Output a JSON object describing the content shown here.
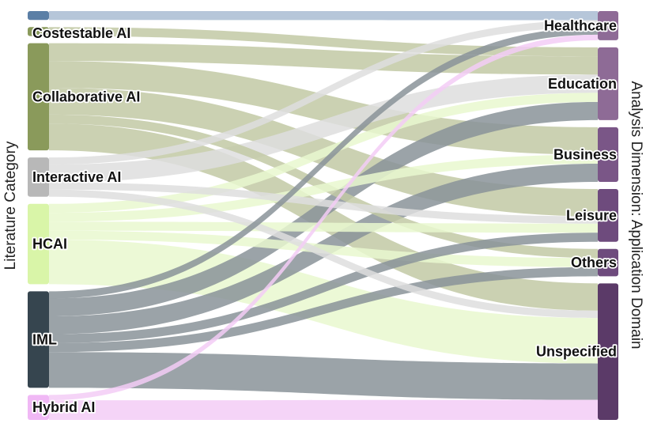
{
  "left_axis_title": "Literature Category",
  "right_axis_title": "Analysis Dimension: Application Domain",
  "sources": [
    {
      "id": "top",
      "label": "",
      "color": "#5b7fa6"
    },
    {
      "id": "costestable",
      "label": "Costestable AI",
      "color": "#8a9a5b"
    },
    {
      "id": "collaborative",
      "label": "Collaborative AI",
      "color": "#8a9a5b"
    },
    {
      "id": "interactive",
      "label": "Interactive AI",
      "color": "#b8b8b8"
    },
    {
      "id": "hcai",
      "label": "HCAI",
      "color": "#d9f5a8"
    },
    {
      "id": "iml",
      "label": "IML",
      "color": "#36454f"
    },
    {
      "id": "hybrid",
      "label": "Hybrid AI",
      "color": "#f0b8f5"
    }
  ],
  "targets": [
    {
      "id": "healthcare",
      "label": "Healthcare",
      "color": "#8e6b96"
    },
    {
      "id": "education",
      "label": "Education",
      "color": "#8e6b96"
    },
    {
      "id": "business",
      "label": "Business",
      "color": "#7a5687"
    },
    {
      "id": "leisure",
      "label": "Leisure",
      "color": "#6e4b7d"
    },
    {
      "id": "others",
      "label": "Others",
      "color": "#6e4b7d"
    },
    {
      "id": "unspecified",
      "label": "Unspecified",
      "color": "#5b3a68"
    }
  ],
  "links": [
    {
      "source": "top",
      "target": "healthcare",
      "value": 1,
      "color": "#a9bcd2"
    },
    {
      "source": "costestable",
      "target": "education",
      "value": 1,
      "color": "#c2c9a4"
    },
    {
      "source": "collaborative",
      "target": "education",
      "value": 2,
      "color": "#c2c9a4"
    },
    {
      "source": "collaborative",
      "target": "business",
      "value": 3,
      "color": "#c2c9a4"
    },
    {
      "source": "collaborative",
      "target": "leisure",
      "value": 3,
      "color": "#c2c9a4"
    },
    {
      "source": "collaborative",
      "target": "others",
      "value": 1,
      "color": "#c2c9a4"
    },
    {
      "source": "collaborative",
      "target": "unspecified",
      "value": 3,
      "color": "#c2c9a4"
    },
    {
      "source": "interactive",
      "target": "healthcare",
      "value": 0.8,
      "color": "#dedede"
    },
    {
      "source": "interactive",
      "target": "education",
      "value": 2,
      "color": "#dedede"
    },
    {
      "source": "interactive",
      "target": "leisure",
      "value": 0.8,
      "color": "#dedede"
    },
    {
      "source": "interactive",
      "target": "unspecified",
      "value": 0.8,
      "color": "#dedede"
    },
    {
      "source": "hcai",
      "target": "education",
      "value": 1,
      "color": "#e9f8cf"
    },
    {
      "source": "hcai",
      "target": "business",
      "value": 1,
      "color": "#e9f8cf"
    },
    {
      "source": "hcai",
      "target": "leisure",
      "value": 1,
      "color": "#e9f8cf"
    },
    {
      "source": "hcai",
      "target": "others",
      "value": 1,
      "color": "#e9f8cf"
    },
    {
      "source": "hcai",
      "target": "unspecified",
      "value": 5,
      "color": "#e9f8cf"
    },
    {
      "source": "iml",
      "target": "healthcare",
      "value": 0.8,
      "color": "#8a9399"
    },
    {
      "source": "iml",
      "target": "education",
      "value": 2,
      "color": "#8a9399"
    },
    {
      "source": "iml",
      "target": "business",
      "value": 2,
      "color": "#8a9399"
    },
    {
      "source": "iml",
      "target": "leisure",
      "value": 1,
      "color": "#8a9399"
    },
    {
      "source": "iml",
      "target": "others",
      "value": 1,
      "color": "#8a9399"
    },
    {
      "source": "iml",
      "target": "unspecified",
      "value": 4,
      "color": "#8a9399"
    },
    {
      "source": "hybrid",
      "target": "healthcare",
      "value": 0.6,
      "color": "#f3ccf6"
    },
    {
      "source": "hybrid",
      "target": "unspecified",
      "value": 2.2,
      "color": "#f3ccf6"
    }
  ]
}
